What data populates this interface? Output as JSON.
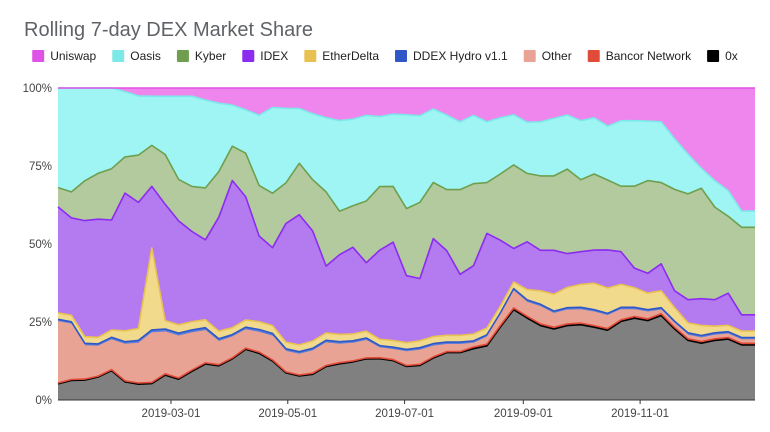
{
  "chart_data": {
    "type": "area",
    "title": "Rolling 7-day DEX Market Share",
    "stacked": true,
    "normalized_percent": true,
    "legend_position": "top",
    "grid": true,
    "xlabel": "",
    "ylabel": "",
    "ylim": [
      0,
      100
    ],
    "xlim": [
      "2019-01-01",
      "2019-12-31"
    ],
    "yticks": [
      0,
      25,
      50,
      75,
      100
    ],
    "ytick_labels": [
      "0%",
      "25%",
      "50%",
      "75%",
      "100%"
    ],
    "xticks": [
      "2019-03-01",
      "2019-05-01",
      "2019-07-01",
      "2019-09-01",
      "2019-11-01"
    ],
    "xtick_labels": [
      "2019-03-01",
      "2019-05-01",
      "2019-07-01",
      "2019-09-01",
      "2019-11-01"
    ],
    "x": [
      "2019-01-01",
      "2019-01-08",
      "2019-01-15",
      "2019-01-22",
      "2019-01-29",
      "2019-02-05",
      "2019-02-12",
      "2019-02-19",
      "2019-02-26",
      "2019-03-05",
      "2019-03-12",
      "2019-03-19",
      "2019-03-26",
      "2019-04-02",
      "2019-04-09",
      "2019-04-16",
      "2019-04-23",
      "2019-04-30",
      "2019-05-07",
      "2019-05-14",
      "2019-05-21",
      "2019-05-28",
      "2019-06-04",
      "2019-06-11",
      "2019-06-18",
      "2019-06-25",
      "2019-07-02",
      "2019-07-09",
      "2019-07-16",
      "2019-07-23",
      "2019-07-30",
      "2019-08-06",
      "2019-08-13",
      "2019-08-20",
      "2019-08-27",
      "2019-09-03",
      "2019-09-10",
      "2019-09-17",
      "2019-09-24",
      "2019-10-01",
      "2019-10-08",
      "2019-10-15",
      "2019-10-22",
      "2019-10-29",
      "2019-11-05",
      "2019-11-12",
      "2019-11-19",
      "2019-11-26",
      "2019-12-03",
      "2019-12-10",
      "2019-12-17",
      "2019-12-24",
      "2019-12-31"
    ],
    "series": [
      {
        "name": "0x",
        "color": "#000000",
        "fill": "#808080",
        "values": [
          5,
          6,
          6,
          7,
          8,
          5,
          4,
          4,
          6,
          5,
          7,
          9,
          9,
          12,
          14,
          12,
          10,
          8,
          7,
          7,
          9,
          10,
          11,
          12,
          13,
          12,
          10,
          10,
          12,
          14,
          14,
          15,
          16,
          22,
          27,
          24,
          22,
          21,
          22,
          23,
          22,
          22,
          24,
          25,
          24,
          25,
          21,
          18,
          17,
          18,
          19,
          17,
          17
        ]
      },
      {
        "name": "Bancor Network",
        "color": "#e04b3a",
        "fill": "#e04b3a",
        "values": [
          0.3,
          0.3,
          0.3,
          0.3,
          0.3,
          0.3,
          0.3,
          0.3,
          0.3,
          0.3,
          0.3,
          0.3,
          0.3,
          0.3,
          0.3,
          0.3,
          0.3,
          0.3,
          0.3,
          0.3,
          0.3,
          0.3,
          0.3,
          0.3,
          0.3,
          0.3,
          0.3,
          0.3,
          0.3,
          0.3,
          0.3,
          0.5,
          0.5,
          0.5,
          0.5,
          0.5,
          0.5,
          0.5,
          0.5,
          0.5,
          0.5,
          0.5,
          0.5,
          0.5,
          0.5,
          0.5,
          0.5,
          0.5,
          0.5,
          0.5,
          0.5,
          0.5,
          0.5
        ]
      },
      {
        "name": "Other",
        "color": "#e8a394",
        "fill": "#e8a394",
        "values": [
          19,
          17,
          10,
          9,
          8,
          10,
          10,
          12,
          10,
          10,
          9,
          8,
          6,
          6,
          5,
          5,
          6,
          6,
          6,
          6,
          6,
          5,
          5,
          5,
          3,
          3,
          4,
          4,
          3,
          2,
          2,
          1,
          2,
          3,
          5,
          4,
          5,
          4,
          4,
          4,
          4,
          4,
          3,
          2,
          2,
          1,
          1,
          1,
          1,
          1,
          1,
          1,
          1
        ]
      },
      {
        "name": "DDEX Hydro v1.1",
        "color": "#2f57c8",
        "fill": "#5b7fd8",
        "values": [
          0.8,
          0.8,
          0.8,
          0.8,
          0.8,
          0.8,
          0.8,
          0.8,
          0.8,
          0.8,
          0.8,
          0.8,
          0.8,
          0.8,
          0.8,
          0.8,
          0.8,
          0.8,
          0.8,
          0.8,
          0.8,
          0.8,
          0.8,
          0.8,
          0.8,
          0.8,
          0.8,
          0.8,
          0.8,
          0.8,
          0.8,
          0.8,
          0.8,
          0.8,
          0.8,
          0.8,
          0.8,
          0.8,
          0.8,
          0.8,
          0.8,
          0.8,
          0.8,
          0.8,
          0.8,
          0.8,
          0.8,
          0.8,
          0.8,
          0.8,
          0.8,
          0.8,
          0.8
        ]
      },
      {
        "name": "EtherDelta",
        "color": "#e8c251",
        "fill": "#f2da8c",
        "values": [
          2,
          2,
          2,
          2,
          2,
          3,
          3,
          20,
          2,
          2,
          2,
          2,
          2,
          2,
          2,
          2,
          2,
          2,
          2,
          2,
          2,
          2,
          2,
          2,
          2,
          2,
          2,
          2,
          2,
          2,
          2,
          2,
          2,
          2,
          2,
          3,
          4,
          5,
          6,
          7,
          8,
          8,
          7,
          6,
          5,
          5,
          4,
          3,
          3,
          2,
          2,
          2,
          2
        ]
      },
      {
        "name": "IDEX",
        "color": "#8b2cf0",
        "fill": "#b47af0",
        "values": [
          33,
          30,
          35,
          36,
          30,
          38,
          32,
          15,
          28,
          25,
          22,
          20,
          30,
          43,
          34,
          22,
          20,
          35,
          38,
          30,
          18,
          22,
          25,
          20,
          28,
          30,
          20,
          18,
          28,
          25,
          18,
          20,
          28,
          20,
          10,
          14,
          12,
          13,
          10,
          10,
          10,
          12,
          10,
          6,
          6,
          8,
          5,
          7,
          8,
          8,
          10,
          5,
          5
        ]
      },
      {
        "name": "Kyber",
        "color": "#6f9f4e",
        "fill": "#b3c99e",
        "values": [
          6,
          8,
          12,
          14,
          14,
          10,
          12,
          10,
          12,
          10,
          11,
          13,
          12,
          10,
          12,
          13,
          14,
          12,
          15,
          14,
          20,
          12,
          12,
          18,
          20,
          17,
          20,
          22,
          16,
          18,
          25,
          24,
          15,
          20,
          25,
          20,
          22,
          22,
          25,
          22,
          23,
          22,
          20,
          25,
          28,
          24,
          30,
          32,
          33,
          28,
          24,
          27,
          27
        ]
      },
      {
        "name": "Oasis",
        "color": "#7de8e8",
        "fill": "#9ef5f3",
        "values": [
          31,
          32,
          28,
          26,
          22,
          18,
          15,
          12,
          14,
          20,
          22,
          22,
          18,
          12,
          12,
          18,
          22,
          22,
          16,
          18,
          20,
          25,
          25,
          25,
          22,
          22,
          28,
          25,
          21,
          22,
          20,
          20,
          18,
          17,
          15,
          15,
          16,
          17,
          16,
          18,
          17,
          17,
          20,
          20,
          18,
          18,
          15,
          12,
          6,
          8,
          8,
          5,
          5
        ]
      },
      {
        "name": "Uniswap",
        "color": "#e052e6",
        "fill": "#ee86ee",
        "values": [
          0,
          0,
          0,
          0,
          0,
          1,
          2,
          2,
          2,
          2,
          2,
          3,
          4,
          5,
          6,
          7,
          5,
          6,
          6,
          7,
          8,
          9,
          9,
          8,
          9,
          8,
          8,
          8,
          6,
          8,
          10,
          8,
          10,
          9,
          8,
          10,
          10,
          9,
          8,
          10,
          9,
          12,
          10,
          10,
          10,
          10,
          15,
          20,
          24,
          28,
          32,
          38,
          38
        ]
      }
    ]
  }
}
